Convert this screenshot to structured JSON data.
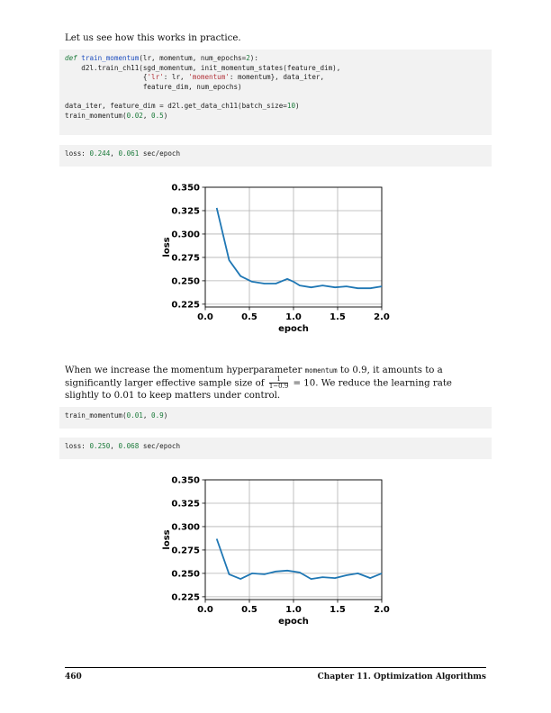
{
  "intro_text": "Let us see how this works in practice.",
  "code1": {
    "line1": {
      "kw": "def",
      "fn": "train_momentum",
      "rest": "(lr, momentum, num_epochs",
      "num": "2",
      "end": "):"
    },
    "line2": "    d2l.train_ch11(sgd_momentum, init_momentum_states(feature_dim),",
    "line3": {
      "pre": "                   {",
      "s1": "'lr'",
      "mid": ": lr, ",
      "s2": "'momentum'",
      "post": ": momentum}, data_iter,"
    },
    "line4": "                   feature_dim, num_epochs)",
    "line5": {
      "pre": "data_iter, feature_dim = d2l.get_data_ch11(batch_size=",
      "num": "10",
      "post": ")"
    },
    "line6": {
      "pre": "train_momentum(",
      "n1": "0.02",
      "mid": ", ",
      "n2": "0.5",
      "post": ")"
    }
  },
  "output1": {
    "pre": "loss: ",
    "loss": "0.244",
    "sep": ", ",
    "time": "0.061",
    "post": " sec/epoch"
  },
  "para2": {
    "before_code": "When we increase the momentum hyperparameter ",
    "code": "momentum",
    "after_code": " to 0.9, it amounts to a significantly larger effective sample size of ",
    "frac_top": "1",
    "frac_bot": "1−0.9",
    "after_frac": " = 10.  We reduce the learning rate slightly to 0.01 to keep matters under control."
  },
  "code2": {
    "pre": "train_momentum(",
    "n1": "0.01",
    "mid": ", ",
    "n2": "0.9",
    "post": ")"
  },
  "output2": {
    "pre": "loss: ",
    "loss": "0.250",
    "sep": ", ",
    "time": "0.068",
    "post": " sec/epoch"
  },
  "footer": {
    "page": "460",
    "chapter": "Chapter 11.  Optimization Algorithms"
  },
  "colors": {
    "line": "#1f77b4",
    "grid": "#b0b0b0",
    "code_bg": "#f2f2f2"
  },
  "chart_data": [
    {
      "type": "line",
      "xlabel": "epoch",
      "ylabel": "loss",
      "xlim": [
        0.0,
        2.0
      ],
      "ylim": [
        0.222,
        0.35
      ],
      "xticks": [
        "0.0",
        "0.5",
        "1.0",
        "1.5",
        "2.0"
      ],
      "xtick_values": [
        0.0,
        0.5,
        1.0,
        1.5,
        2.0
      ],
      "yticks": [
        "0.225",
        "0.250",
        "0.275",
        "0.300",
        "0.325",
        "0.350"
      ],
      "ytick_values": [
        0.225,
        0.25,
        0.275,
        0.3,
        0.325,
        0.35
      ],
      "grid": true,
      "x": [
        0.13,
        0.27,
        0.4,
        0.53,
        0.67,
        0.8,
        0.93,
        1.0,
        1.07,
        1.2,
        1.33,
        1.47,
        1.6,
        1.73,
        1.87,
        2.0
      ],
      "y": [
        0.328,
        0.272,
        0.255,
        0.249,
        0.247,
        0.247,
        0.252,
        0.249,
        0.245,
        0.243,
        0.245,
        0.243,
        0.244,
        0.242,
        0.242,
        0.244
      ]
    },
    {
      "type": "line",
      "xlabel": "epoch",
      "ylabel": "loss",
      "xlim": [
        0.0,
        2.0
      ],
      "ylim": [
        0.222,
        0.35
      ],
      "xticks": [
        "0.0",
        "0.5",
        "1.0",
        "1.5",
        "2.0"
      ],
      "xtick_values": [
        0.0,
        0.5,
        1.0,
        1.5,
        2.0
      ],
      "yticks": [
        "0.225",
        "0.250",
        "0.275",
        "0.300",
        "0.325",
        "0.350"
      ],
      "ytick_values": [
        0.225,
        0.25,
        0.275,
        0.3,
        0.325,
        0.35
      ],
      "grid": true,
      "x": [
        0.13,
        0.27,
        0.4,
        0.53,
        0.67,
        0.8,
        0.93,
        1.07,
        1.2,
        1.33,
        1.47,
        1.6,
        1.73,
        1.87,
        2.0
      ],
      "y": [
        0.287,
        0.249,
        0.244,
        0.25,
        0.249,
        0.252,
        0.253,
        0.251,
        0.244,
        0.246,
        0.245,
        0.248,
        0.25,
        0.245,
        0.25
      ]
    }
  ]
}
